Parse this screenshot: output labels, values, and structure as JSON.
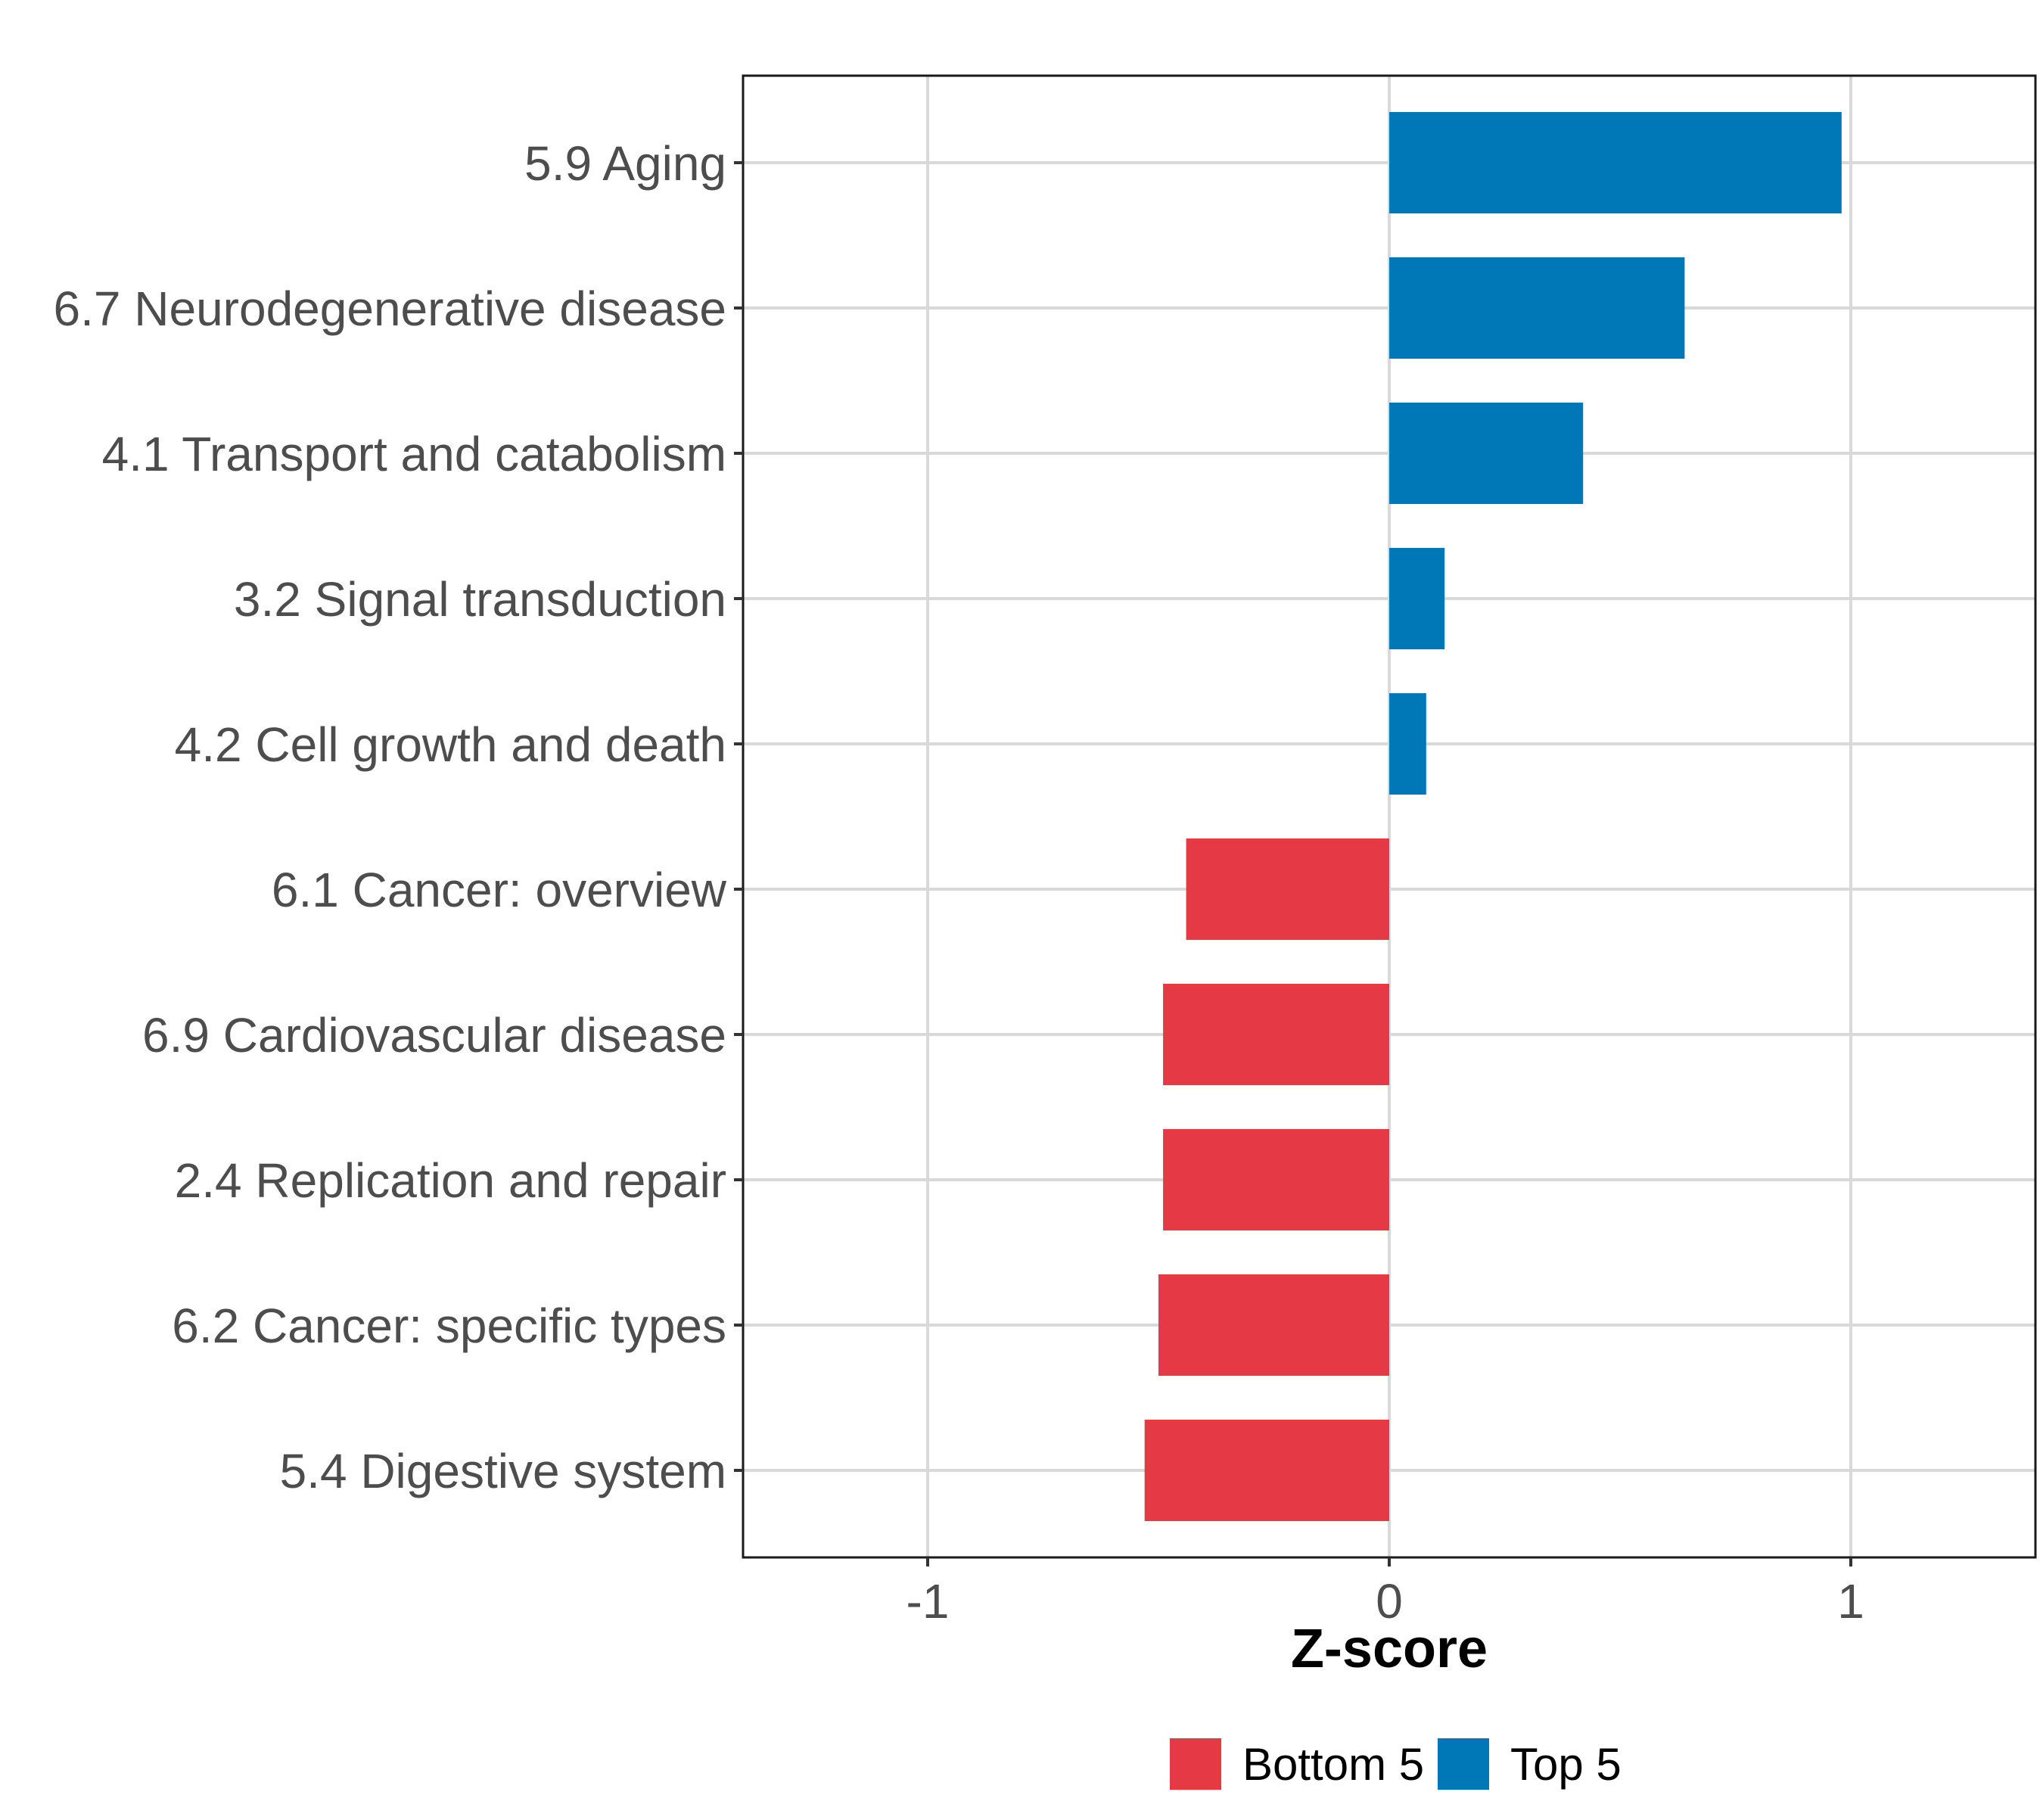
{
  "chart_data": {
    "type": "bar",
    "orientation": "horizontal",
    "title": "",
    "xlabel": "Z-score",
    "ylabel": "",
    "xlim": [
      -1.4,
      1.4
    ],
    "xticks": [
      -1,
      0,
      1
    ],
    "xtick_labels": [
      "-1",
      "0",
      "1"
    ],
    "grid": true,
    "legend_position": "bottom",
    "categories": [
      "5.9 Aging",
      "6.7 Neurodegenerative disease",
      "4.1 Transport and catabolism",
      "3.2 Signal transduction",
      "4.2 Cell growth and death",
      "6.1 Cancer: overview",
      "6.9 Cardiovascular disease",
      "2.4 Replication and repair",
      "6.2 Cancer: specific types",
      "5.4 Digestive system"
    ],
    "values": [
      0.98,
      0.64,
      0.42,
      0.12,
      0.08,
      -0.44,
      -0.49,
      -0.49,
      -0.5,
      -0.53
    ],
    "groups": [
      "Top 5",
      "Top 5",
      "Top 5",
      "Top 5",
      "Top 5",
      "Bottom 5",
      "Bottom 5",
      "Bottom 5",
      "Bottom 5",
      "Bottom 5"
    ],
    "legend": [
      {
        "name": "Bottom 5",
        "color": "#e63946"
      },
      {
        "name": "Top 5",
        "color": "#0077b6"
      }
    ]
  }
}
